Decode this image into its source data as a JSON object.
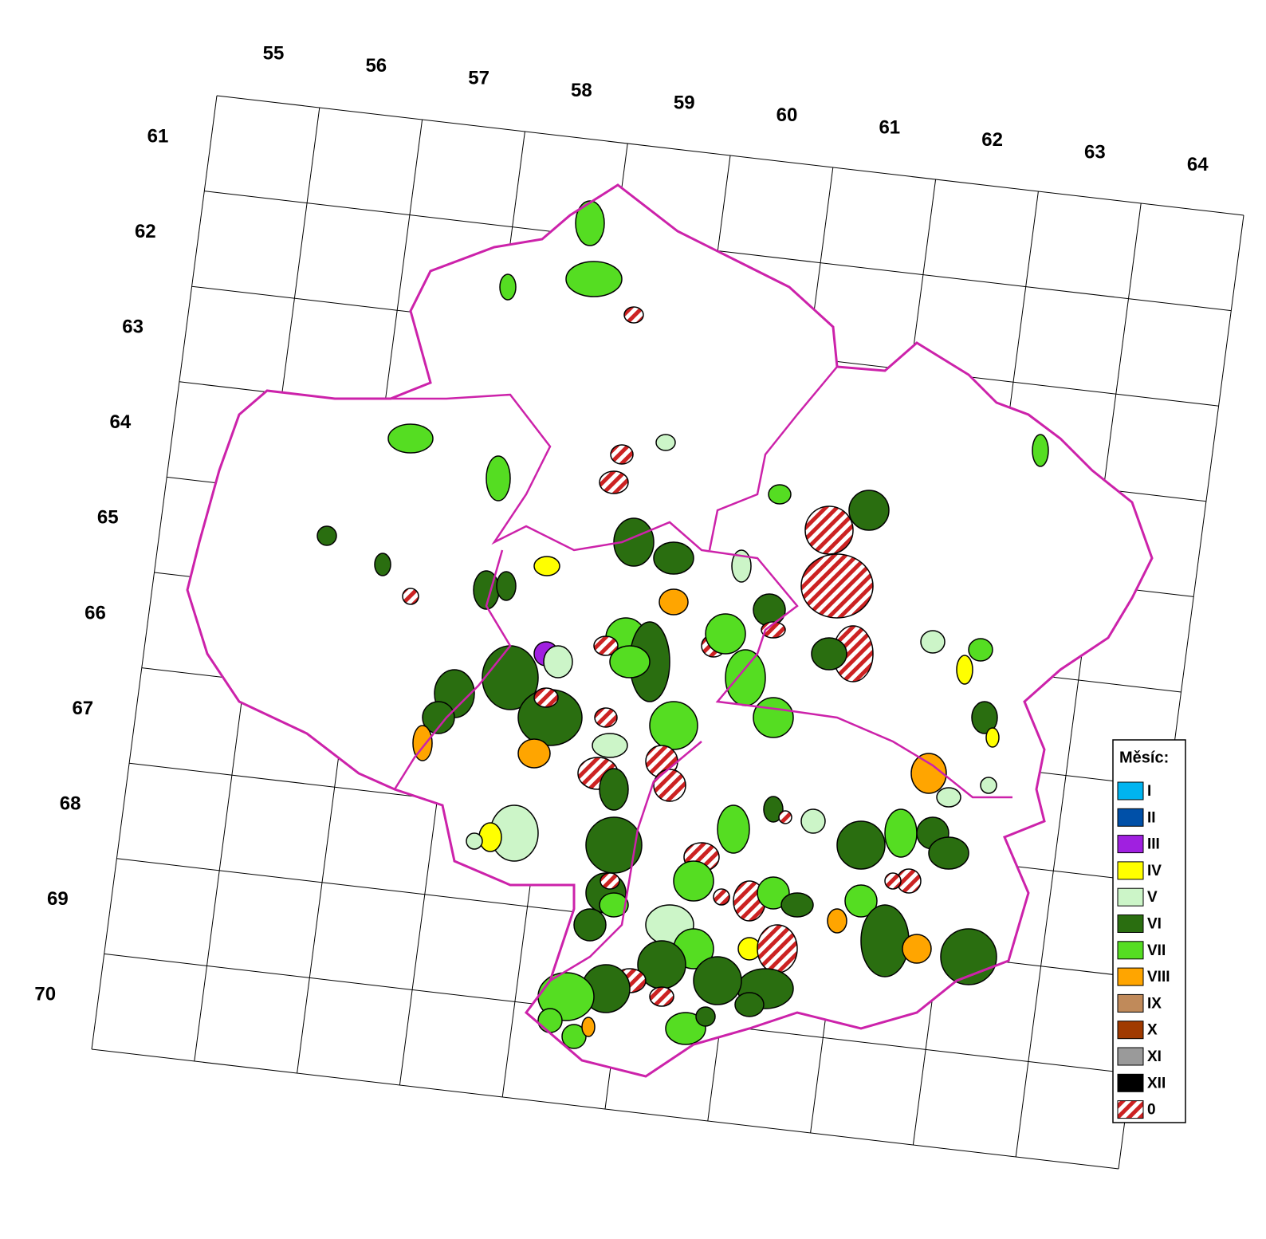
{
  "grid": {
    "columns": [
      55,
      56,
      57,
      58,
      59,
      60,
      61,
      62,
      63,
      64
    ],
    "rows": [
      61,
      62,
      63,
      64,
      65,
      66,
      67,
      68,
      69,
      70
    ]
  },
  "legend": {
    "title": "Měsíc:",
    "items": [
      {
        "label": "I",
        "color": "#00b4f0"
      },
      {
        "label": "II",
        "color": "#0050a8"
      },
      {
        "label": "III",
        "color": "#a020e0"
      },
      {
        "label": "IV",
        "color": "#ffff00"
      },
      {
        "label": "V",
        "color": "#ccf5c8"
      },
      {
        "label": "VI",
        "color": "#2a6e10"
      },
      {
        "label": "VII",
        "color": "#55dd22"
      },
      {
        "label": "VIII",
        "color": "#ffa500"
      },
      {
        "label": "IX",
        "color": "#c08a5a"
      },
      {
        "label": "X",
        "color": "#a03a00"
      },
      {
        "label": "XI",
        "color": "#9a9a9a"
      },
      {
        "label": "XII",
        "color": "#000000"
      },
      {
        "label": "0",
        "color": "#cc2222",
        "hatch": true
      }
    ]
  }
}
